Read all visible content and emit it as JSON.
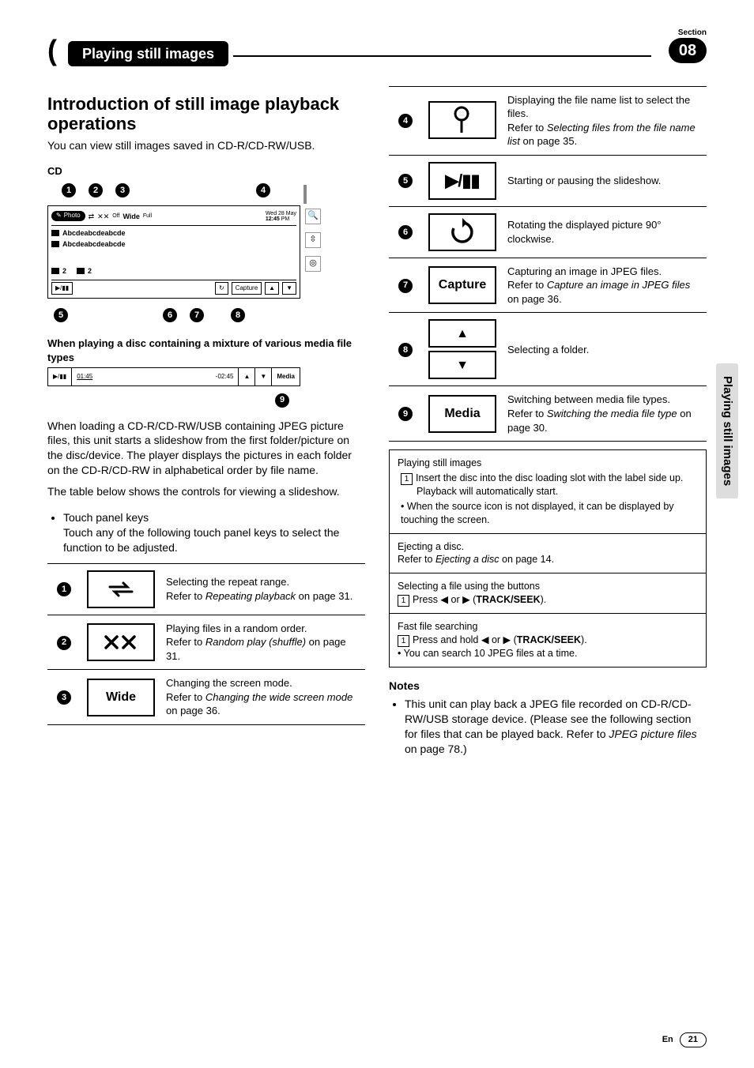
{
  "section": {
    "label": "Section",
    "number": "08"
  },
  "chapter_title": "Playing still images",
  "side_tab": "Playing still images",
  "h1": "Introduction of still image playback operations",
  "intro": "You can view still images saved in CD-R/CD-RW/USB.",
  "cd_label": "CD",
  "cd_mock": {
    "photo": "Photo",
    "off": "Off",
    "wide": "Wide",
    "full": "Full",
    "date": "Wed 28 May",
    "time": "12:45",
    "pm": "PM",
    "file1": "Abcdeabcdeabcde",
    "file2": "Abcdeabcdeabcde",
    "f2a": "2",
    "f2b": "2",
    "capture": "Capture"
  },
  "mix_heading": "When playing a disc containing a mixture of various media file types",
  "media_mock": {
    "t1": "01:45",
    "t2": "-02:45",
    "media": "Media"
  },
  "callout9": "9",
  "para1": "When loading a CD-R/CD-RW/USB containing JPEG picture files, this unit starts a slideshow from the first folder/picture on the disc/device. The player displays the pictures in each folder on the CD-R/CD-RW in alphabetical order by file name.",
  "para2": "The table below shows the controls for viewing a slideshow.",
  "bul1_a": "Touch panel keys",
  "bul1_b": "Touch any of the following touch panel keys to select the function to be adjusted.",
  "rows_left": [
    {
      "n": "1",
      "icon": "repeat",
      "desc": "Selecting the repeat range.",
      "ref": "Refer to ",
      "ital": "Repeating playback",
      "tail": " on page 31."
    },
    {
      "n": "2",
      "icon": "shuffle",
      "desc": "Playing files in a random order.",
      "ref": "Refer to ",
      "ital": "Random play (shuffle)",
      "tail": " on page 31."
    },
    {
      "n": "3",
      "icon": "Wide",
      "desc": "Changing the screen mode.",
      "ref": "Refer to ",
      "ital": "Changing the wide screen mode",
      "tail": " on page 36."
    }
  ],
  "rows_right": [
    {
      "n": "4",
      "icon": "search",
      "desc": "Displaying the file name list to select the files.",
      "ref": "Refer to ",
      "ital": "Selecting files from the file name list",
      "tail": " on page 35."
    },
    {
      "n": "5",
      "icon": "playpause",
      "desc": "Starting or pausing the slideshow.",
      "ref": "",
      "ital": "",
      "tail": ""
    },
    {
      "n": "6",
      "icon": "rotate",
      "desc": "Rotating the displayed picture 90° clockwise.",
      "ref": "",
      "ital": "",
      "tail": ""
    },
    {
      "n": "7",
      "icon": "Capture",
      "desc": "Capturing an image in JPEG files.",
      "ref": "Refer to ",
      "ital": "Capture an image in JPEG files",
      "tail": " on page 36."
    },
    {
      "n": "8",
      "icon": "updown",
      "desc": "Selecting a folder.",
      "ref": "",
      "ital": "",
      "tail": ""
    },
    {
      "n": "9",
      "icon": "Media",
      "desc": "Switching between media file types.",
      "ref": "Refer to ",
      "ital": "Switching the media file type",
      "tail": " on page 30."
    }
  ],
  "info1": {
    "title": "Playing still images",
    "s1": "Insert the disc into the disc loading slot with the label side up.",
    "s1b": "Playback will automatically start.",
    "b1": "When the source icon is not displayed, it can be displayed by touching the screen."
  },
  "info2": {
    "title": "Ejecting a disc.",
    "l": "Refer to ",
    "ital": "Ejecting a disc",
    "tail": " on page 14."
  },
  "info3": {
    "title": "Selecting a file using the buttons",
    "s": "Press ◀ or ▶ (",
    "bold": "TRACK/SEEK",
    "tail": ")."
  },
  "info4": {
    "title": "Fast file searching",
    "s": "Press and hold ◀ or ▶ (",
    "bold": "TRACK/SEEK",
    "tail": ").",
    "b": "You can search 10 JPEG files at a time."
  },
  "notes_h": "Notes",
  "note1a": "This unit can play back a JPEG file recorded on CD-R/CD-RW/USB storage device. (Please see the following section for files that can be played back. Refer to ",
  "note1b": "JPEG picture files",
  "note1c": " on page 78.)",
  "footer": {
    "lang": "En",
    "page": "21"
  }
}
